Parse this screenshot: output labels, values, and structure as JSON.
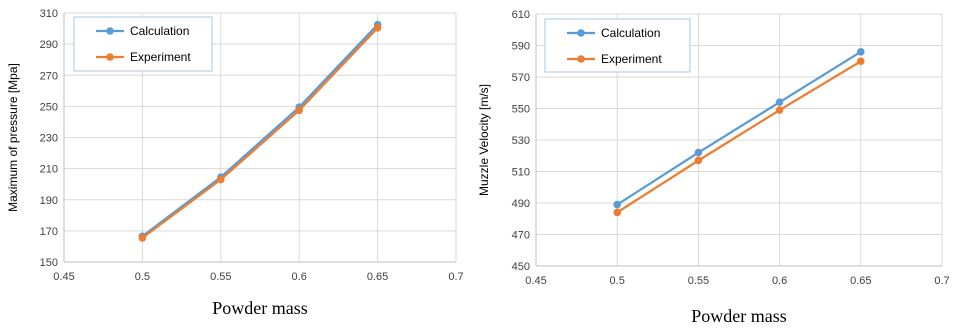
{
  "chart_data": [
    {
      "type": "line",
      "xlabel": "Powder mass",
      "ylabel": "Maximum of pressure [Mpa]",
      "xlim": [
        0.45,
        0.7
      ],
      "ylim": [
        150,
        310
      ],
      "xticks": [
        "0.45",
        "0.5",
        "0.55",
        "0.6",
        "0.65",
        "0.7"
      ],
      "yticks": [
        "150",
        "170",
        "190",
        "210",
        "230",
        "250",
        "270",
        "290",
        "310"
      ],
      "x": [
        0.5,
        0.55,
        0.6,
        0.65
      ],
      "grid": true,
      "legend_position": "top-left",
      "series": [
        {
          "name": "Calculation",
          "color": "#5b9bd5",
          "values": [
            166.5,
            204.5,
            249.5,
            302.5
          ]
        },
        {
          "name": "Experiment",
          "color": "#ed7d31",
          "values": [
            165.5,
            203,
            247.5,
            300.5
          ]
        }
      ]
    },
    {
      "type": "line",
      "xlabel": "Powder mass",
      "ylabel": "Muzzle Velocity  [m/s]",
      "xlim": [
        0.45,
        0.7
      ],
      "ylim": [
        450,
        610
      ],
      "xticks": [
        "0.45",
        "0.5",
        "0.55",
        "0.6",
        "0.65",
        "0.7"
      ],
      "yticks": [
        "450",
        "470",
        "490",
        "510",
        "530",
        "550",
        "570",
        "590",
        "610"
      ],
      "x": [
        0.5,
        0.55,
        0.6,
        0.65
      ],
      "grid": true,
      "legend_position": "top-left",
      "series": [
        {
          "name": "Calculation",
          "color": "#5b9bd5",
          "values": [
            489,
            522,
            554,
            586
          ]
        },
        {
          "name": "Experiment",
          "color": "#ed7d31",
          "values": [
            484,
            517,
            549,
            580
          ]
        }
      ]
    }
  ]
}
